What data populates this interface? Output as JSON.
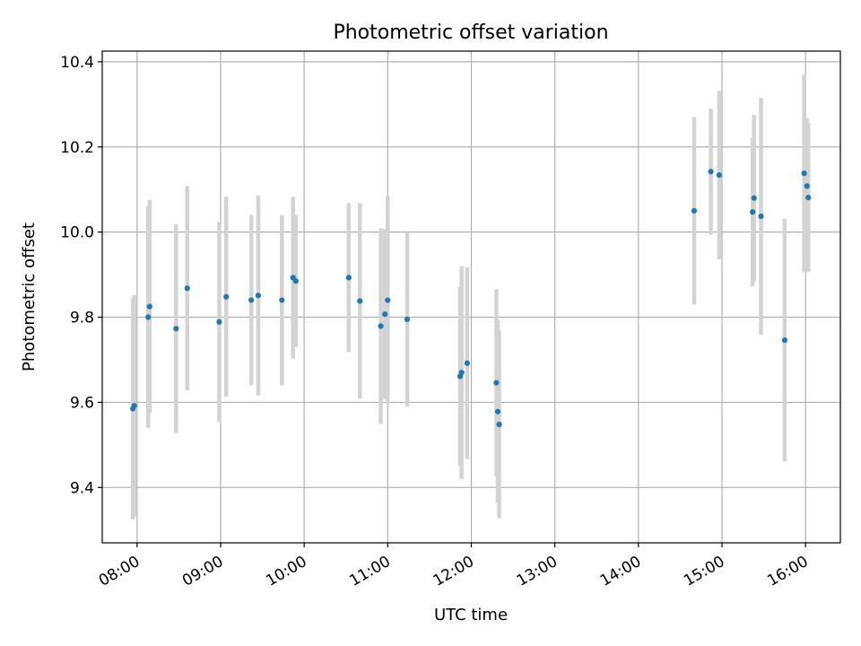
{
  "chart_data": {
    "type": "scatter",
    "title": "Photometric offset variation",
    "xlabel": "UTC time",
    "ylabel": "Photometric offset",
    "xlim": [
      "07:35",
      "16:25"
    ],
    "ylim": [
      9.27,
      10.425
    ],
    "x_ticks": [
      "08:00",
      "09:00",
      "10:00",
      "11:00",
      "12:00",
      "13:00",
      "14:00",
      "15:00",
      "16:00"
    ],
    "y_ticks": [
      9.4,
      9.6,
      9.8,
      10.0,
      10.2,
      10.4
    ],
    "y_tick_labels": [
      "9.4",
      "9.6",
      "9.8",
      "10.0",
      "10.2",
      "10.4"
    ],
    "grid": true,
    "colors": {
      "point": "#1f77b4",
      "errorbar": "#d3d3d3",
      "grid": "#b0b0b0"
    },
    "points": [
      {
        "time": "07:57",
        "y": 9.585,
        "err": 0.26
      },
      {
        "time": "07:58",
        "y": 9.592,
        "err": 0.26
      },
      {
        "time": "08:08",
        "y": 9.8,
        "err": 0.26
      },
      {
        "time": "08:09",
        "y": 9.825,
        "err": 0.25
      },
      {
        "time": "08:28",
        "y": 9.773,
        "err": 0.245
      },
      {
        "time": "08:36",
        "y": 9.868,
        "err": 0.24
      },
      {
        "time": "08:59",
        "y": 9.789,
        "err": 0.235
      },
      {
        "time": "09:04",
        "y": 9.848,
        "err": 0.235
      },
      {
        "time": "09:22",
        "y": 9.84,
        "err": 0.2
      },
      {
        "time": "09:27",
        "y": 9.851,
        "err": 0.235
      },
      {
        "time": "09:44",
        "y": 9.84,
        "err": 0.2
      },
      {
        "time": "09:52",
        "y": 9.893,
        "err": 0.19
      },
      {
        "time": "09:54",
        "y": 9.885,
        "err": 0.155
      },
      {
        "time": "10:32",
        "y": 9.893,
        "err": 0.175
      },
      {
        "time": "10:40",
        "y": 9.838,
        "err": 0.23
      },
      {
        "time": "10:55",
        "y": 9.779,
        "err": 0.23
      },
      {
        "time": "10:58",
        "y": 9.807,
        "err": 0.2
      },
      {
        "time": "11:00",
        "y": 9.84,
        "err": 0.245
      },
      {
        "time": "11:14",
        "y": 9.795,
        "err": 0.205
      },
      {
        "time": "11:52",
        "y": 9.661,
        "err": 0.21
      },
      {
        "time": "11:53",
        "y": 9.67,
        "err": 0.25
      },
      {
        "time": "11:57",
        "y": 9.692,
        "err": 0.225
      },
      {
        "time": "12:18",
        "y": 9.646,
        "err": 0.22
      },
      {
        "time": "12:19",
        "y": 9.578,
        "err": 0.215
      },
      {
        "time": "12:20",
        "y": 9.548,
        "err": 0.22
      },
      {
        "time": "14:40",
        "y": 10.05,
        "err": 0.22
      },
      {
        "time": "14:52",
        "y": 10.142,
        "err": 0.148
      },
      {
        "time": "14:58",
        "y": 10.134,
        "err": 0.198
      },
      {
        "time": "15:22",
        "y": 10.047,
        "err": 0.175
      },
      {
        "time": "15:23",
        "y": 10.08,
        "err": 0.195
      },
      {
        "time": "15:28",
        "y": 10.037,
        "err": 0.278
      },
      {
        "time": "15:45",
        "y": 9.746,
        "err": 0.285
      },
      {
        "time": "15:59",
        "y": 10.138,
        "err": 0.232
      },
      {
        "time": "16:01",
        "y": 10.108,
        "err": 0.16
      },
      {
        "time": "16:02",
        "y": 10.081,
        "err": 0.175
      }
    ]
  }
}
